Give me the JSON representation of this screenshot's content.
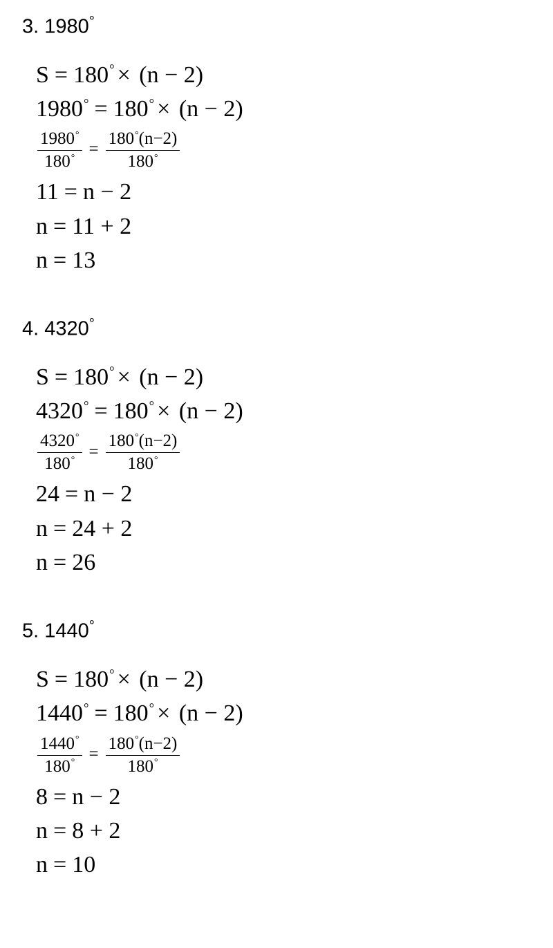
{
  "problems": [
    {
      "number": "3",
      "angle": "1980",
      "quotient": "11",
      "result": "13"
    },
    {
      "number": "4",
      "angle": "4320",
      "quotient": "24",
      "result": "26"
    },
    {
      "number": "5",
      "angle": "1440",
      "quotient": "8",
      "result": "10"
    }
  ],
  "constants": {
    "base": "180",
    "var": "n",
    "sub": "2",
    "S": "S"
  },
  "symbols": {
    "deg": "°",
    "eq": "=",
    "times": "×",
    "lparen": "(",
    "rparen": ")",
    "minus": "−",
    "plus": "+",
    "dot": "."
  }
}
